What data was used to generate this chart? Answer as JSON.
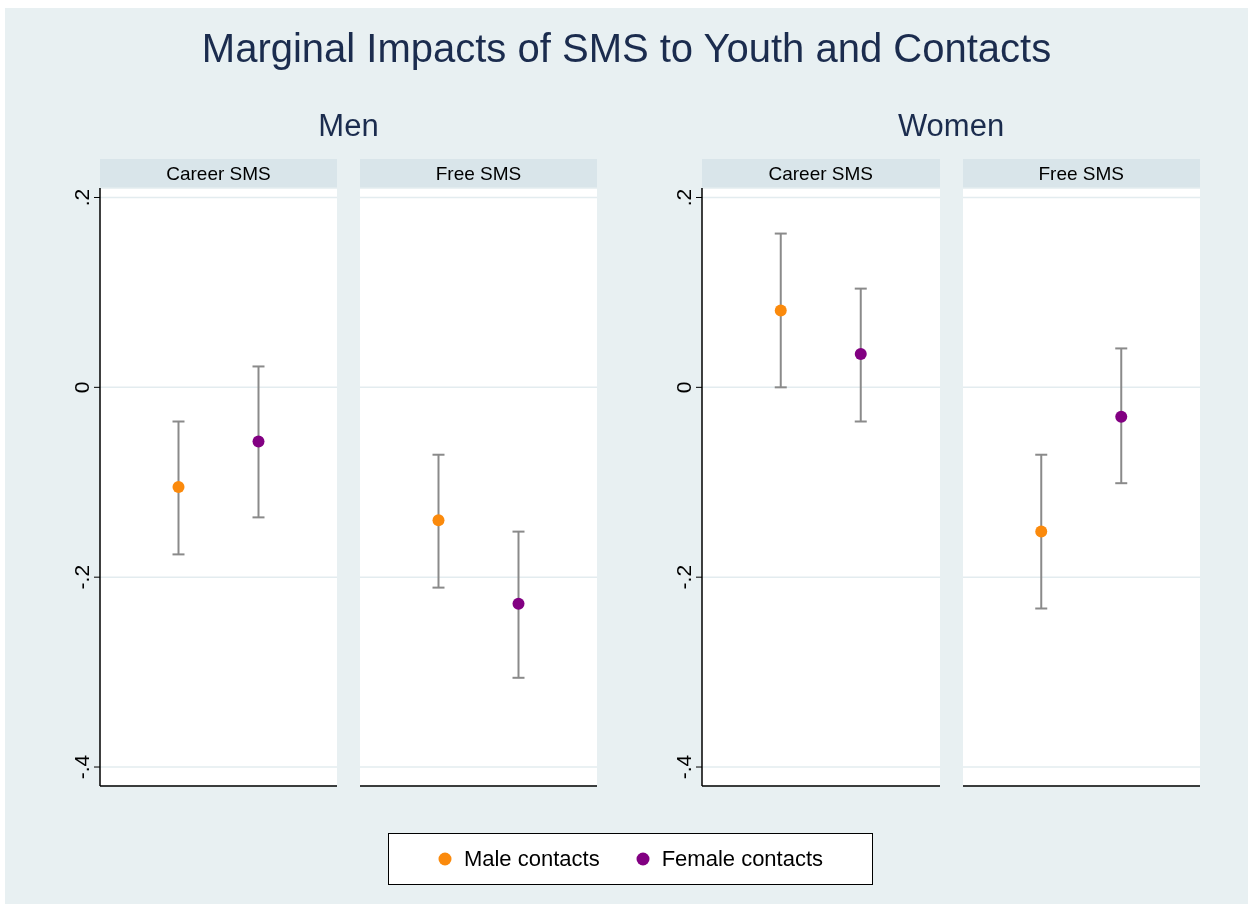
{
  "chart_data": [
    {
      "type": "scatter",
      "title": "Men",
      "annotations": [
        "Marginal Impacts of SMS to Youth and Contacts"
      ],
      "categories": [
        "Career SMS",
        "Free SMS"
      ],
      "series": [
        {
          "name": "Male contacts",
          "color": "#fb8a0c",
          "values": [
            -0.105,
            -0.14
          ],
          "errors": [
            [
              -0.176,
              -0.036
            ],
            [
              -0.211,
              -0.071
            ]
          ]
        },
        {
          "name": "Female contacts",
          "color": "#820082",
          "values": [
            -0.057,
            -0.228
          ],
          "errors": [
            [
              -0.137,
              0.022
            ],
            [
              -0.306,
              -0.152
            ]
          ]
        }
      ],
      "ylim": [
        -0.42,
        0.21
      ],
      "yticks": [
        {
          "value": -0.4,
          "label": "-.4"
        },
        {
          "value": -0.2,
          "label": "-.2"
        },
        0,
        {
          "value": 0.2,
          "label": ".2"
        }
      ],
      "grid": "y",
      "marker": "circle",
      "legend": "bottom"
    },
    {
      "type": "scatter",
      "title": "Women",
      "categories": [
        "Career SMS",
        "Free SMS"
      ],
      "series": [
        {
          "color": "#fb8a0c",
          "values": [
            0.081,
            -0.152
          ],
          "errors": [
            [
              0,
              0.162
            ],
            [
              -0.233,
              -0.071
            ]
          ]
        },
        {
          "color": "#820082",
          "values": [
            0.035,
            -0.031
          ],
          "errors": [
            [
              -0.036,
              0.104
            ],
            [
              -0.101,
              0.041
            ]
          ]
        }
      ],
      "ylim": [
        -0.42,
        0.21
      ],
      "yticks": [
        {
          "value": -0.4,
          "label": "-.4"
        },
        {
          "value": -0.2,
          "label": "-.2"
        },
        0,
        {
          "value": 0.2,
          "label": ".2"
        }
      ],
      "grid": "y",
      "marker": "circle"
    }
  ]
}
